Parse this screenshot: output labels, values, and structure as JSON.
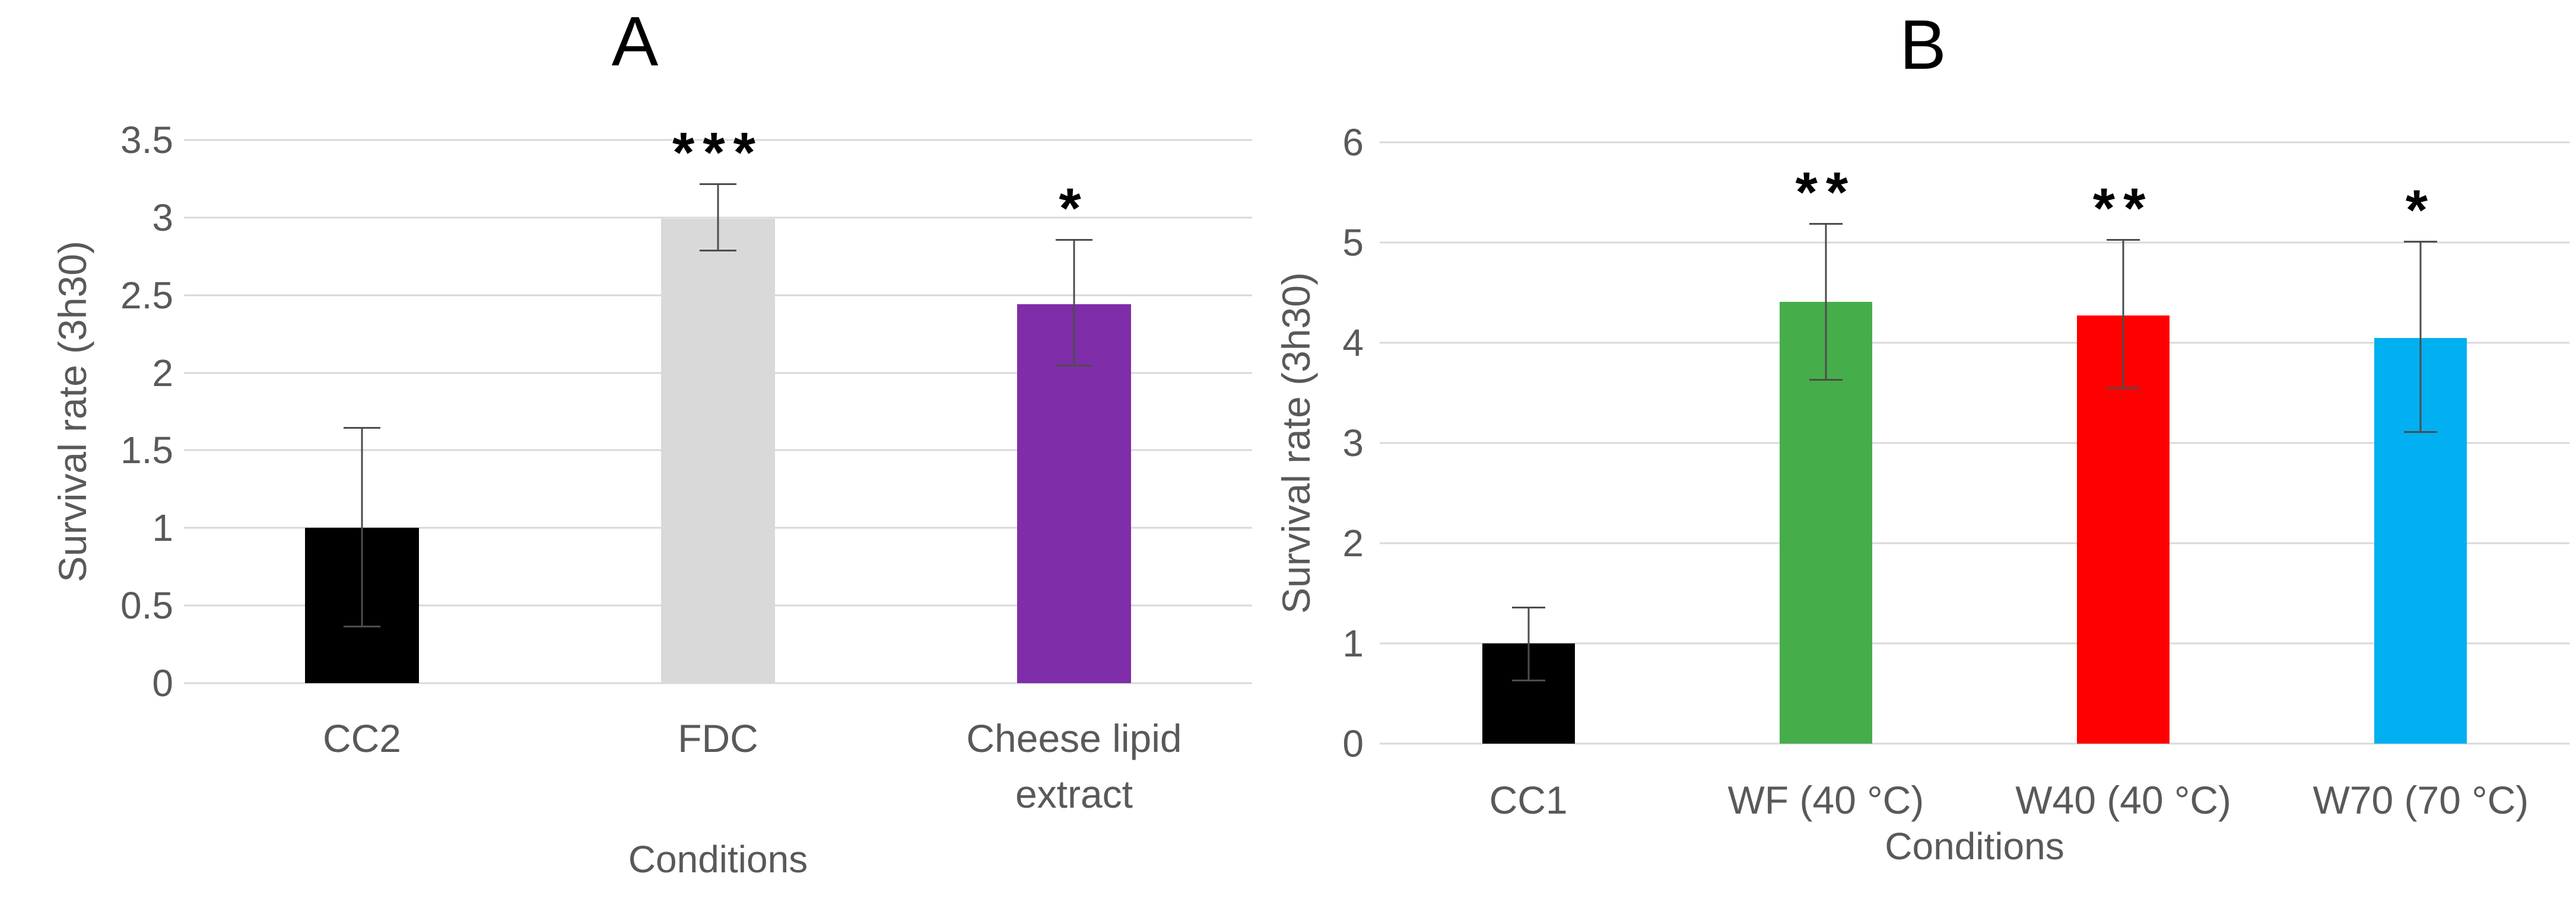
{
  "figure": {
    "background": "#FFFFFF",
    "text_color": "#595959",
    "title_color": "#000000",
    "gridline_color": "#D9D9D9",
    "error_bar_color": "#4D4D4D"
  },
  "chart_data": [
    {
      "type": "bar",
      "panel": "A",
      "title": "A",
      "xlabel": "Conditions",
      "ylabel": "Survival rate (3h30)",
      "ylim": [
        0,
        3.5
      ],
      "yticks": [
        "0",
        "0.5",
        "1",
        "1.5",
        "2",
        "2.5",
        "3",
        "3.5"
      ],
      "grid": true,
      "legend": "none",
      "categories": [
        "CC2",
        "FDC",
        "Cheese lipid extract"
      ],
      "category_lines": [
        [
          "CC2"
        ],
        [
          "FDC"
        ],
        [
          "Cheese lipid",
          "extract"
        ]
      ],
      "values": [
        1.0,
        2.99,
        2.44
      ],
      "bar_colors": [
        "#000000",
        "#D9D9D9",
        "#7F2DA8"
      ],
      "error_top": [
        1.64,
        3.21,
        2.85
      ],
      "error_bottom": [
        0.36,
        2.78,
        2.04
      ],
      "significance": [
        "",
        "***",
        "*"
      ]
    },
    {
      "type": "bar",
      "panel": "B",
      "title": "B",
      "xlabel": "Conditions",
      "ylabel": "Survival rate (3h30)",
      "ylim": [
        0,
        6
      ],
      "yticks": [
        "0",
        "1",
        "2",
        "3",
        "4",
        "5",
        "6"
      ],
      "grid": true,
      "legend": "none",
      "categories": [
        "CC1",
        "WF (40 °C)",
        "W40 (40 °C)",
        "W70 (70 °C)"
      ],
      "category_lines": [
        [
          "CC1"
        ],
        [
          "WF (40 °C)"
        ],
        [
          "W40 (40 °C)"
        ],
        [
          "W70 (70 °C)"
        ]
      ],
      "values": [
        1.0,
        4.41,
        4.27,
        4.05
      ],
      "bar_colors": [
        "#000000",
        "#46AD4B",
        "#FF0000",
        "#00B0F0"
      ],
      "error_top": [
        1.35,
        5.18,
        5.02,
        5.0
      ],
      "error_bottom": [
        0.62,
        3.62,
        3.54,
        3.1
      ],
      "significance": [
        "",
        "**",
        "**",
        "*"
      ]
    }
  ]
}
